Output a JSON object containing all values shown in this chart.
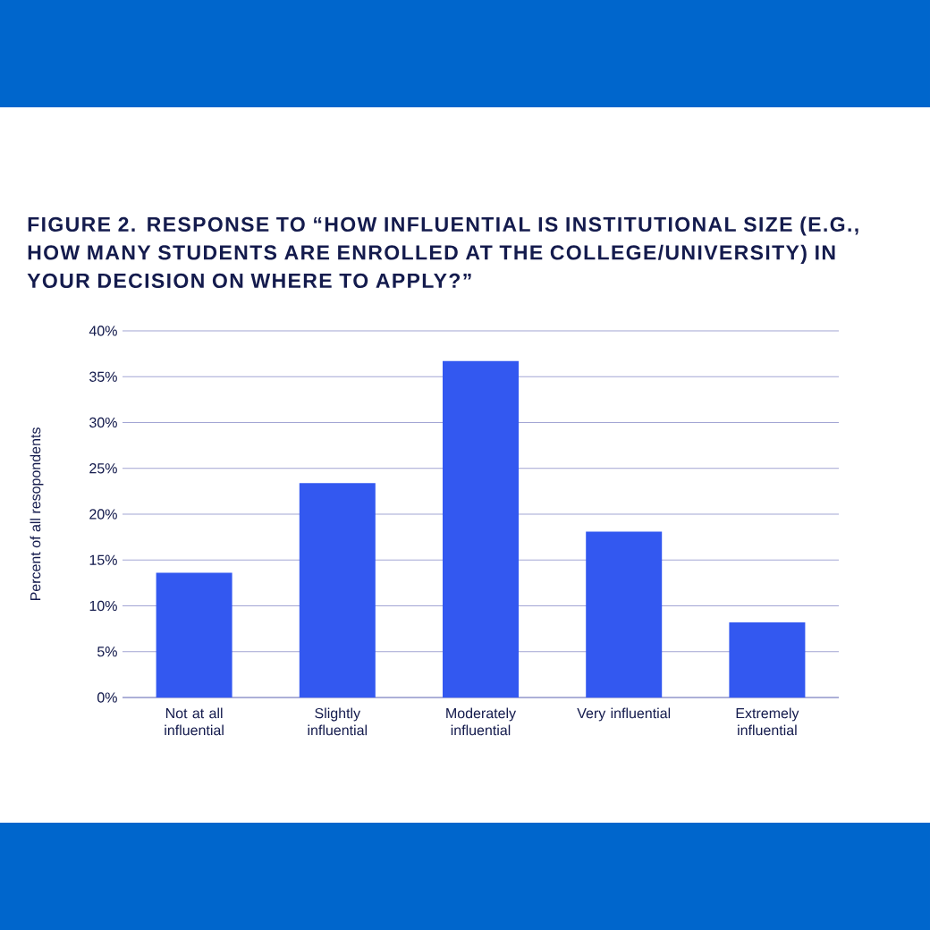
{
  "chart_data": {
    "type": "bar",
    "title": "FIGURE 2. RESPONSE TO “HOW INFLUENTIAL IS INSTITUTIONAL SIZE (E.G., HOW MANY STUDENTS ARE ENROLLED AT THE COLLEGE/UNIVERSITY) IN YOUR DECISION ON WHERE TO APPLY?”",
    "ylabel": "Percent of all resopondents",
    "categories": [
      "Not at all influential",
      "Slightly influential",
      "Moderately influential",
      "Very influential",
      "Extremely influential"
    ],
    "values": [
      13.6,
      23.4,
      36.7,
      18.1,
      8.2
    ],
    "color": "#3358f0",
    "ylim": [
      0,
      40
    ],
    "yticks": [
      {
        "value": 0,
        "label": "0%"
      },
      {
        "value": 5,
        "label": "5%"
      },
      {
        "value": 10,
        "label": "10%"
      },
      {
        "value": 15,
        "label": "15%"
      },
      {
        "value": 20,
        "label": "20%"
      },
      {
        "value": 25,
        "label": "25%"
      },
      {
        "value": 30,
        "label": "30%"
      },
      {
        "value": 35,
        "label": "35%"
      },
      {
        "value": 40,
        "label": "40%"
      }
    ],
    "grid": "y"
  }
}
